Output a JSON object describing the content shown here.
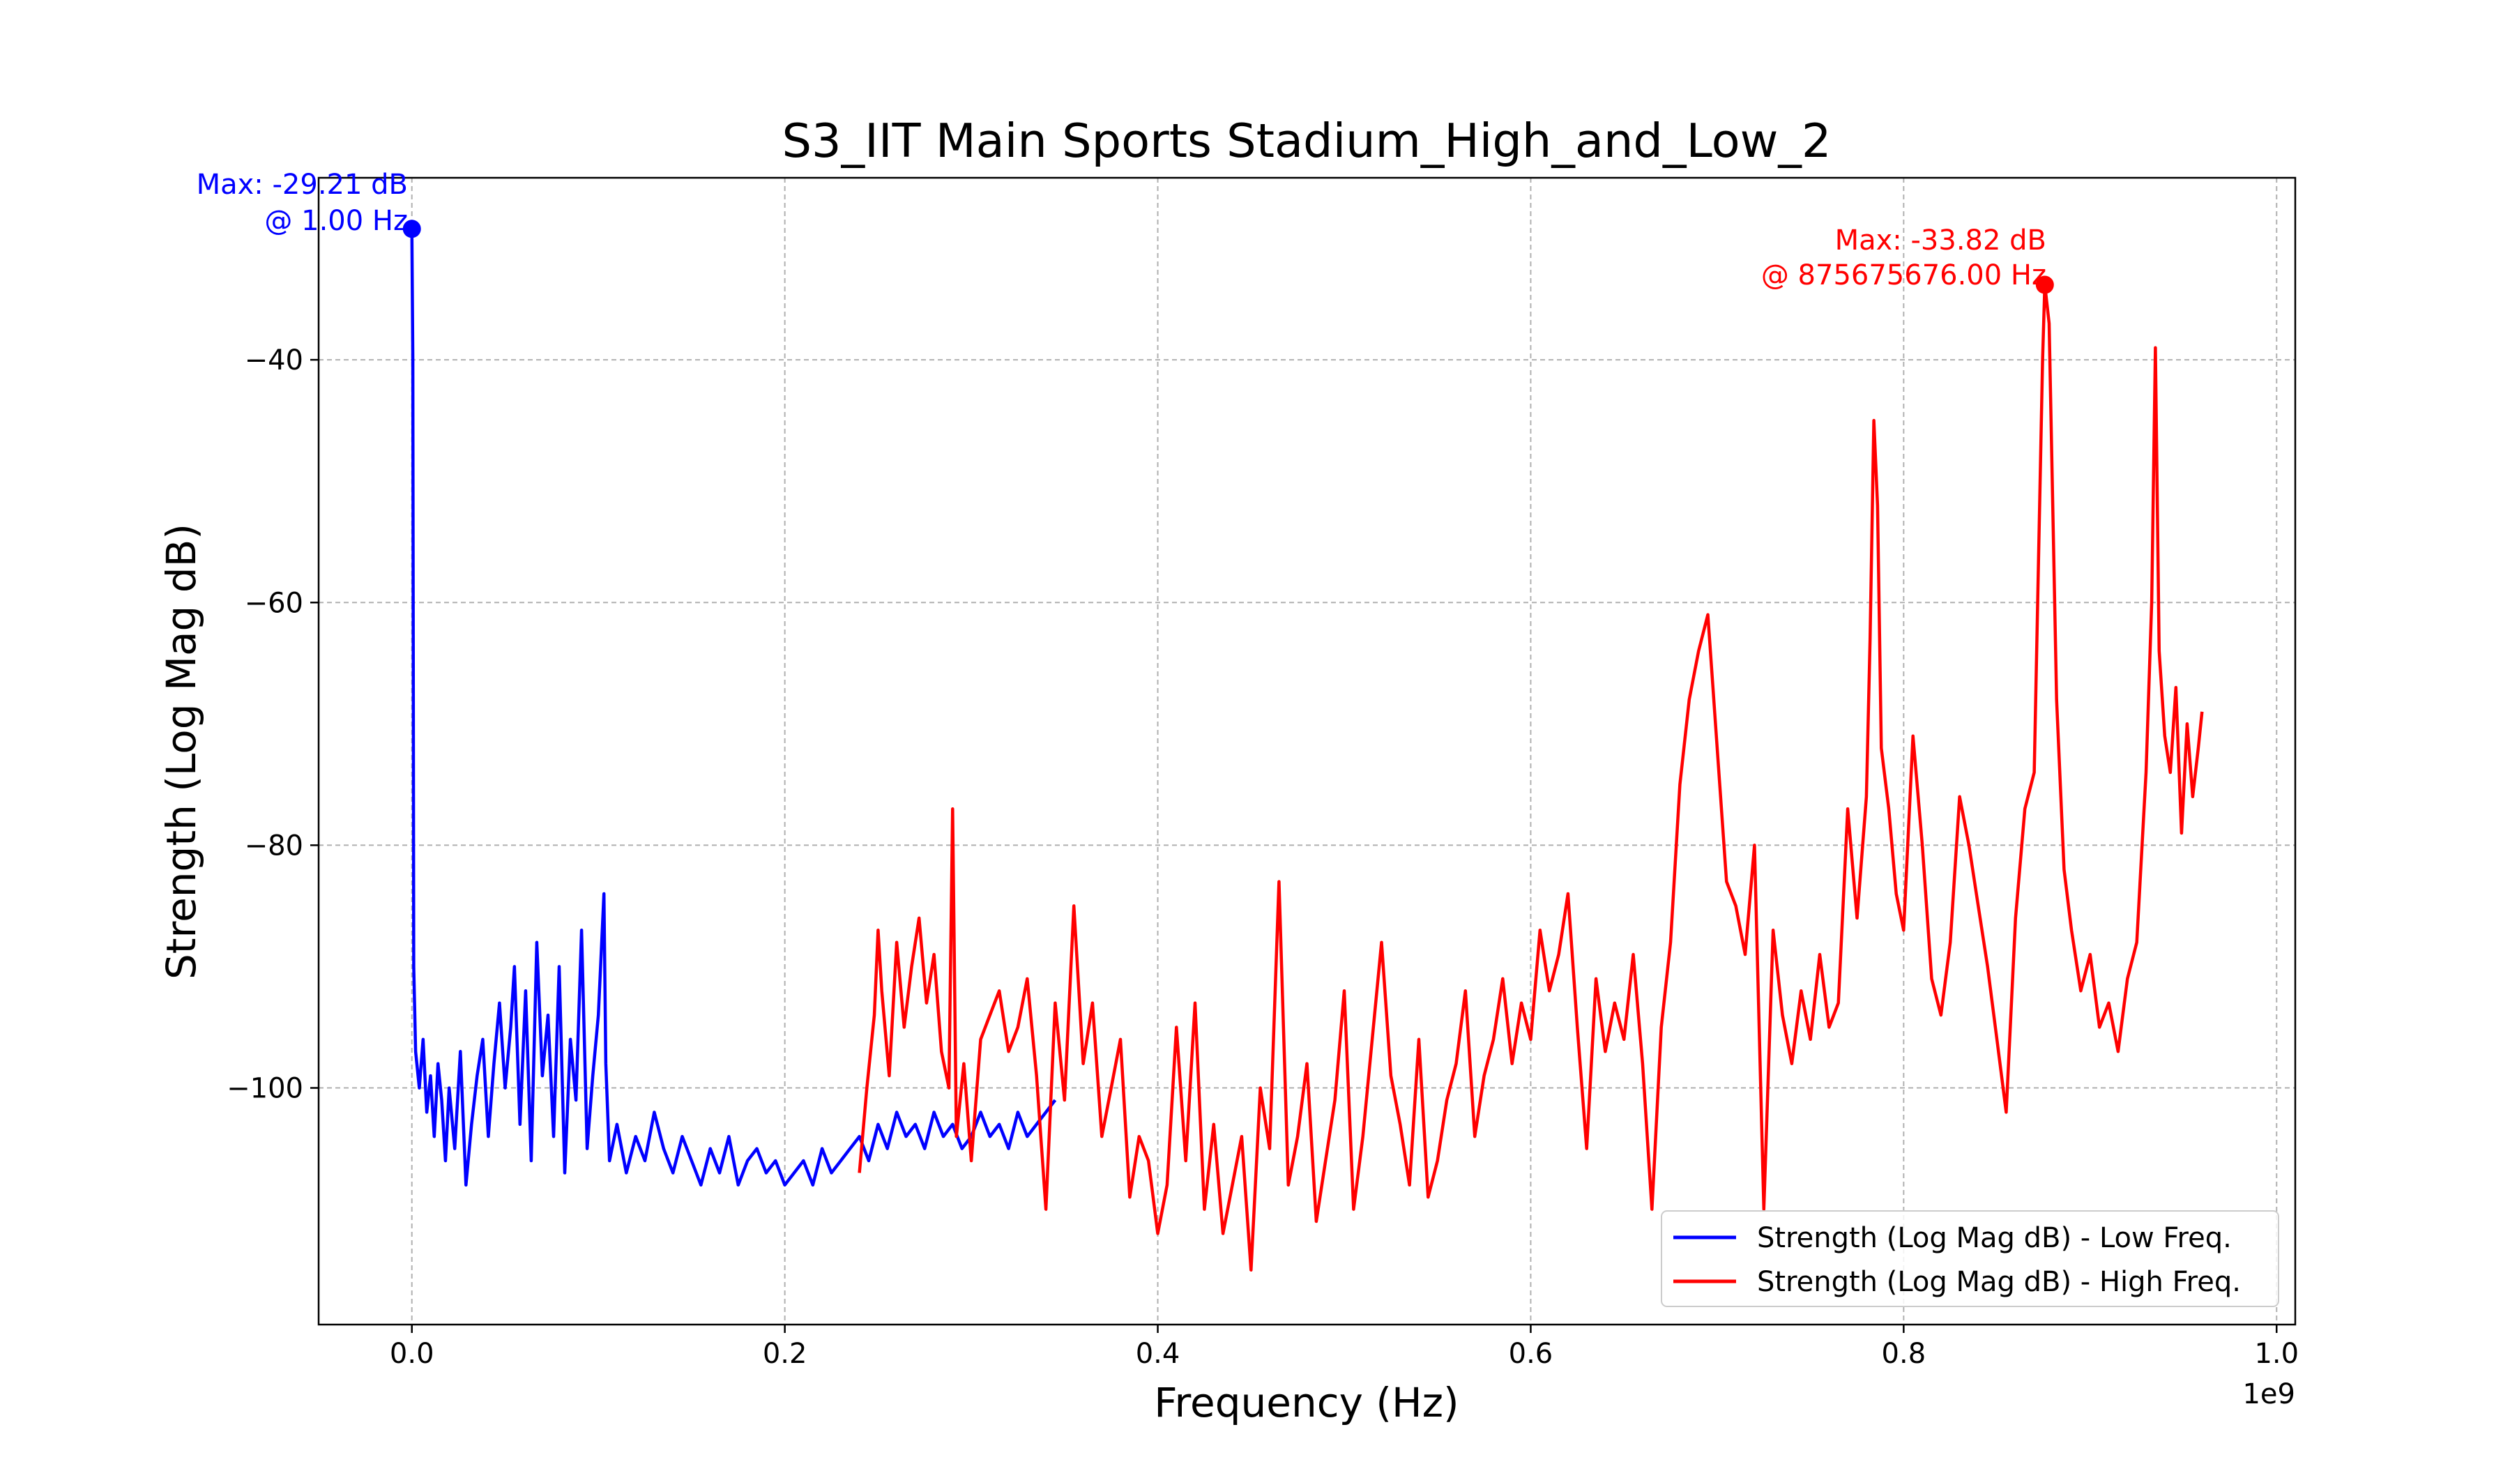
{
  "chart_data": {
    "type": "line",
    "title": "S3_IIT Main Sports Stadium_High_and_Low_2",
    "xlabel": "Frequency (Hz)",
    "ylabel": "Strength (Log Mag dB)",
    "x_offset_label": "1e9",
    "x_scale": 1000000000,
    "xlim": [
      -0.05,
      1.01
    ],
    "ylim": [
      -119.5,
      -25
    ],
    "xticks": [
      0.0,
      0.2,
      0.4,
      0.6,
      0.8,
      1.0
    ],
    "xtick_labels": [
      "0.0",
      "0.2",
      "0.4",
      "0.6",
      "0.8",
      "1.0"
    ],
    "yticks": [
      -40,
      -60,
      -80,
      -100
    ],
    "ytick_labels": [
      "−40",
      "−60",
      "−80",
      "−100"
    ],
    "grid": true,
    "legend_position": "lower-right",
    "series": [
      {
        "name": "Strength (Log Mag dB) - Low Freq.",
        "color": "#0000ff",
        "x": [
          0.0,
          0.0005,
          0.001,
          0.002,
          0.004,
          0.006,
          0.008,
          0.01,
          0.012,
          0.014,
          0.016,
          0.018,
          0.02,
          0.023,
          0.026,
          0.029,
          0.032,
          0.035,
          0.038,
          0.041,
          0.044,
          0.047,
          0.05,
          0.053,
          0.055,
          0.058,
          0.061,
          0.064,
          0.067,
          0.07,
          0.073,
          0.076,
          0.079,
          0.082,
          0.085,
          0.088,
          0.091,
          0.094,
          0.097,
          0.1,
          0.103,
          0.104,
          0.106,
          0.11,
          0.115,
          0.12,
          0.125,
          0.13,
          0.135,
          0.14,
          0.145,
          0.15,
          0.155,
          0.16,
          0.165,
          0.17,
          0.175,
          0.18,
          0.185,
          0.19,
          0.195,
          0.2,
          0.205,
          0.21,
          0.215,
          0.22,
          0.225,
          0.23,
          0.235,
          0.24,
          0.245,
          0.25,
          0.255,
          0.26,
          0.265,
          0.27,
          0.275,
          0.28,
          0.285,
          0.29,
          0.295,
          0.3,
          0.305,
          0.31,
          0.315,
          0.32,
          0.325,
          0.33,
          0.335,
          0.34,
          0.345
        ],
        "y": [
          -29.21,
          -40,
          -90,
          -97,
          -100,
          -96,
          -102,
          -99,
          -104,
          -98,
          -101,
          -106,
          -100,
          -105,
          -97,
          -108,
          -103,
          -99,
          -96,
          -104,
          -98,
          -93,
          -100,
          -95,
          -90,
          -103,
          -92,
          -106,
          -88,
          -99,
          -94,
          -104,
          -90,
          -107,
          -96,
          -101,
          -87,
          -105,
          -99,
          -94,
          -84,
          -98,
          -106,
          -103,
          -107,
          -104,
          -106,
          -102,
          -105,
          -107,
          -104,
          -106,
          -108,
          -105,
          -107,
          -104,
          -108,
          -106,
          -105,
          -107,
          -106,
          -108,
          -107,
          -106,
          -108,
          -105,
          -107,
          -106,
          -105,
          -104,
          -106,
          -103,
          -105,
          -102,
          -104,
          -103,
          -105,
          -102,
          -104,
          -103,
          -105,
          -104,
          -102,
          -104,
          -103,
          -105,
          -102,
          -104,
          -103,
          -102,
          -101
        ]
      },
      {
        "name": "Strength (Log Mag dB) - High Freq.",
        "color": "#ff0000",
        "x": [
          0.24,
          0.244,
          0.248,
          0.25,
          0.252,
          0.256,
          0.26,
          0.264,
          0.268,
          0.272,
          0.276,
          0.28,
          0.284,
          0.288,
          0.29,
          0.292,
          0.296,
          0.3,
          0.305,
          0.31,
          0.315,
          0.32,
          0.325,
          0.33,
          0.335,
          0.34,
          0.345,
          0.35,
          0.355,
          0.36,
          0.365,
          0.37,
          0.375,
          0.38,
          0.385,
          0.39,
          0.395,
          0.4,
          0.405,
          0.41,
          0.415,
          0.42,
          0.425,
          0.43,
          0.435,
          0.44,
          0.445,
          0.45,
          0.455,
          0.46,
          0.465,
          0.47,
          0.475,
          0.48,
          0.485,
          0.49,
          0.495,
          0.5,
          0.505,
          0.51,
          0.515,
          0.52,
          0.525,
          0.53,
          0.535,
          0.54,
          0.545,
          0.55,
          0.555,
          0.56,
          0.565,
          0.57,
          0.575,
          0.58,
          0.585,
          0.59,
          0.595,
          0.6,
          0.605,
          0.61,
          0.615,
          0.62,
          0.625,
          0.63,
          0.635,
          0.64,
          0.645,
          0.65,
          0.655,
          0.66,
          0.665,
          0.67,
          0.675,
          0.68,
          0.685,
          0.69,
          0.695,
          0.7,
          0.705,
          0.71,
          0.715,
          0.72,
          0.725,
          0.73,
          0.735,
          0.74,
          0.745,
          0.75,
          0.755,
          0.76,
          0.765,
          0.77,
          0.775,
          0.78,
          0.782,
          0.784,
          0.786,
          0.788,
          0.792,
          0.796,
          0.8,
          0.805,
          0.81,
          0.815,
          0.82,
          0.825,
          0.83,
          0.835,
          0.84,
          0.845,
          0.85,
          0.855,
          0.86,
          0.865,
          0.87,
          0.8745,
          0.8757,
          0.878,
          0.882,
          0.886,
          0.89,
          0.895,
          0.9,
          0.905,
          0.91,
          0.915,
          0.92,
          0.925,
          0.93,
          0.933,
          0.935,
          0.937,
          0.94,
          0.943,
          0.946,
          0.949,
          0.952,
          0.955,
          0.958,
          0.96
        ],
        "y": [
          -107,
          -100,
          -94,
          -87,
          -92,
          -99,
          -88,
          -95,
          -90,
          -86,
          -93,
          -89,
          -97,
          -100,
          -77,
          -104,
          -98,
          -106,
          -96,
          -94,
          -92,
          -97,
          -95,
          -91,
          -99,
          -110,
          -93,
          -101,
          -85,
          -98,
          -93,
          -104,
          -100,
          -96,
          -109,
          -104,
          -106,
          -112,
          -108,
          -95,
          -106,
          -93,
          -110,
          -103,
          -112,
          -108,
          -104,
          -115,
          -100,
          -105,
          -83,
          -108,
          -104,
          -98,
          -111,
          -106,
          -101,
          -92,
          -110,
          -104,
          -96,
          -88,
          -99,
          -103,
          -108,
          -96,
          -109,
          -106,
          -101,
          -98,
          -92,
          -104,
          -99,
          -96,
          -91,
          -98,
          -93,
          -96,
          -87,
          -92,
          -89,
          -84,
          -95,
          -105,
          -91,
          -97,
          -93,
          -96,
          -89,
          -98,
          -110,
          -95,
          -88,
          -75,
          -68,
          -64,
          -61,
          -72,
          -83,
          -85,
          -89,
          -80,
          -110,
          -87,
          -94,
          -98,
          -92,
          -96,
          -89,
          -95,
          -93,
          -77,
          -86,
          -76,
          -63,
          -45,
          -52,
          -72,
          -77,
          -84,
          -87,
          -71,
          -80,
          -91,
          -94,
          -88,
          -76,
          -80,
          -85,
          -90,
          -96,
          -102,
          -86,
          -77,
          -74,
          -40,
          -33.82,
          -37,
          -68,
          -82,
          -87,
          -92,
          -89,
          -95,
          -93,
          -97,
          -91,
          -88,
          -74,
          -60,
          -39,
          -64,
          -71,
          -74,
          -67,
          -79,
          -70,
          -76,
          -72,
          -69
        ]
      }
    ],
    "annotations": [
      {
        "series": 0,
        "x": 0.0,
        "y": -29.21,
        "text_line1": "Max: -29.21 dB",
        "text_line2": "@ 1.00 Hz",
        "color": "#0000ff"
      },
      {
        "series": 1,
        "x": 0.8757,
        "y": -33.82,
        "text_line1": "Max: -33.82 dB",
        "text_line2": "@ 875675676.00 Hz",
        "color": "#ff0000"
      }
    ]
  }
}
